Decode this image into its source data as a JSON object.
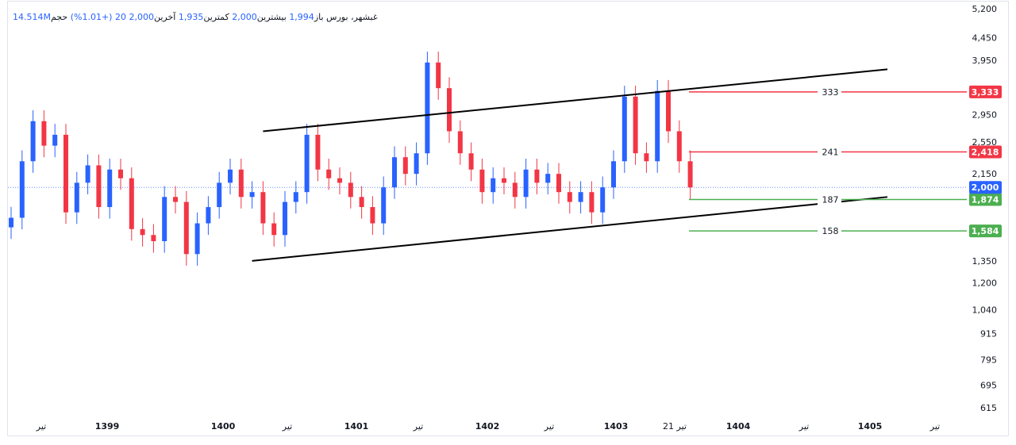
{
  "header": {
    "symbol": "غبشهر، بورس",
    "open_label": "باز",
    "open_value": "1,994",
    "high_label": "بیشترین",
    "high_value": "2,000",
    "low_label": "کمترین",
    "low_value": "1,935",
    "close_label": "آخرین",
    "close_value": "2,000",
    "change_value": "20  (+1.01%)",
    "volume_label": "حجم",
    "volume_value": "14.514M"
  },
  "chart_data": {
    "type": "candlestick",
    "y_scale": "log",
    "ylim": [
      600,
      5200
    ],
    "y_ticks": [
      "5,200",
      "4,450",
      "3,950",
      "2,950",
      "2,550",
      "2,150",
      "1,350",
      "1,200",
      "1,040",
      "915",
      "795",
      "695",
      "615"
    ],
    "x_ticks": [
      {
        "label": "تیر",
        "bold": false
      },
      {
        "label": "1399",
        "bold": true
      },
      {
        "label": "1400",
        "bold": true
      },
      {
        "label": "تیر",
        "bold": false
      },
      {
        "label": "1401",
        "bold": true
      },
      {
        "label": "تیر",
        "bold": false
      },
      {
        "label": "1402",
        "bold": true
      },
      {
        "label": "تیر",
        "bold": false
      },
      {
        "label": "1403",
        "bold": true
      },
      {
        "label": "21 تیر",
        "bold": false
      },
      {
        "label": "1404",
        "bold": true
      },
      {
        "label": "تیر",
        "bold": false
      },
      {
        "label": "1405",
        "bold": true
      },
      {
        "label": "تیر",
        "bold": false
      }
    ],
    "last_price": {
      "value": 2000,
      "label": "2,000",
      "color": "#2962ff"
    },
    "levels": [
      {
        "value": 3333,
        "tag": "3,333",
        "distance": "333",
        "color": "#f23645"
      },
      {
        "value": 2418,
        "tag": "2,418",
        "distance": "241",
        "color": "#f23645"
      },
      {
        "value": 1874,
        "tag": "1,874",
        "distance": "187",
        "color": "#4caf50"
      },
      {
        "value": 1584,
        "tag": "1,584",
        "distance": "158",
        "color": "#4caf50"
      }
    ],
    "channel_lines": [
      {
        "name": "upper",
        "start": {
          "date": "1399-12",
          "value": 2700
        },
        "end": {
          "date": "1404-09",
          "value": 3760
        }
      },
      {
        "name": "lower",
        "start": {
          "date": "1399-11",
          "value": 1350
        },
        "end": {
          "date": "1404-09",
          "value": 1900
        }
      }
    ],
    "closes": [
      {
        "date": "1398-01",
        "value": 1700
      },
      {
        "date": "1398-02",
        "value": 2300
      },
      {
        "date": "1398-03",
        "value": 2850
      },
      {
        "date": "1398-04",
        "value": 2500
      },
      {
        "date": "1398-05",
        "value": 2650
      },
      {
        "date": "1398-06",
        "value": 1750
      },
      {
        "date": "1398-07",
        "value": 2050
      },
      {
        "date": "1398-08",
        "value": 2250
      },
      {
        "date": "1398-09",
        "value": 1800
      },
      {
        "date": "1398-10",
        "value": 2200
      },
      {
        "date": "1398-11",
        "value": 2100
      },
      {
        "date": "1398-12",
        "value": 1600
      },
      {
        "date": "1399-01",
        "value": 1550
      },
      {
        "date": "1399-02",
        "value": 1500
      },
      {
        "date": "1399-03",
        "value": 1900
      },
      {
        "date": "1399-04",
        "value": 1850
      },
      {
        "date": "1399-05",
        "value": 1400
      },
      {
        "date": "1399-06",
        "value": 1650
      },
      {
        "date": "1399-07",
        "value": 1800
      },
      {
        "date": "1399-08",
        "value": 2050
      },
      {
        "date": "1399-09",
        "value": 2200
      },
      {
        "date": "1399-10",
        "value": 1900
      },
      {
        "date": "1399-11",
        "value": 1950
      },
      {
        "date": "1399-12",
        "value": 1650
      },
      {
        "date": "1400-01",
        "value": 1550
      },
      {
        "date": "1400-02",
        "value": 1850
      },
      {
        "date": "1400-03",
        "value": 1950
      },
      {
        "date": "1400-04",
        "value": 2650
      },
      {
        "date": "1400-05",
        "value": 2200
      },
      {
        "date": "1400-06",
        "value": 2100
      },
      {
        "date": "1400-07",
        "value": 2050
      },
      {
        "date": "1400-08",
        "value": 1900
      },
      {
        "date": "1400-09",
        "value": 1800
      },
      {
        "date": "1400-10",
        "value": 1650
      },
      {
        "date": "1400-11",
        "value": 2000
      },
      {
        "date": "1400-12",
        "value": 2350
      },
      {
        "date": "1401-01",
        "value": 2150
      },
      {
        "date": "1401-02",
        "value": 2400
      },
      {
        "date": "1401-03",
        "value": 3900
      },
      {
        "date": "1401-04",
        "value": 3400
      },
      {
        "date": "1401-05",
        "value": 2700
      },
      {
        "date": "1401-06",
        "value": 2400
      },
      {
        "date": "1401-07",
        "value": 2200
      },
      {
        "date": "1401-08",
        "value": 1950
      },
      {
        "date": "1401-09",
        "value": 2100
      },
      {
        "date": "1401-10",
        "value": 2050
      },
      {
        "date": "1401-11",
        "value": 1900
      },
      {
        "date": "1401-12",
        "value": 2200
      },
      {
        "date": "1402-01",
        "value": 2050
      },
      {
        "date": "1402-02",
        "value": 2150
      },
      {
        "date": "1402-03",
        "value": 1950
      },
      {
        "date": "1402-04",
        "value": 1850
      },
      {
        "date": "1402-05",
        "value": 1950
      },
      {
        "date": "1402-06",
        "value": 1750
      },
      {
        "date": "1402-07",
        "value": 2000
      },
      {
        "date": "1402-08",
        "value": 2300
      },
      {
        "date": "1402-09",
        "value": 3250
      },
      {
        "date": "1402-10",
        "value": 2400
      },
      {
        "date": "1402-11",
        "value": 2300
      },
      {
        "date": "1402-12",
        "value": 3350
      },
      {
        "date": "1403-01",
        "value": 2700
      },
      {
        "date": "1403-02",
        "value": 2300
      },
      {
        "date": "1403-03",
        "value": 2000
      }
    ]
  }
}
